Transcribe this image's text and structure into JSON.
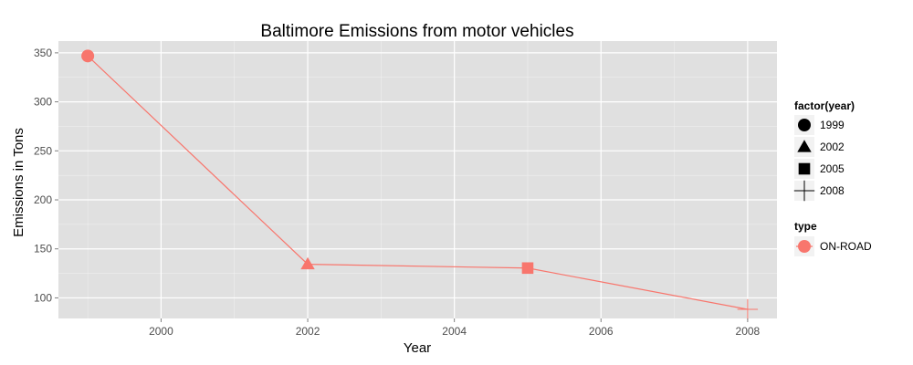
{
  "chart_data": {
    "type": "line",
    "title": "Baltimore Emissions from motor vehicles",
    "xlabel": "Year",
    "ylabel": "Emissions in Tons",
    "x": [
      1999,
      2002,
      2005,
      2008
    ],
    "series": [
      {
        "name": "ON-ROAD",
        "values": [
          346.8,
          134.3,
          130.4,
          88.3
        ]
      }
    ],
    "xlim": [
      1998.6,
      2008.4
    ],
    "ylim": [
      79,
      362
    ],
    "x_ticks": [
      2000,
      2002,
      2004,
      2006,
      2008
    ],
    "y_ticks": [
      100,
      150,
      200,
      250,
      300,
      350
    ],
    "x_tick_labels": [
      "2000",
      "2002",
      "2004",
      "2006",
      "2008"
    ],
    "y_tick_labels": [
      "100",
      "150",
      "200",
      "250",
      "300",
      "350"
    ],
    "grid": true,
    "legend_position": "right",
    "colors": {
      "series": "#F8766D",
      "panel": "#E0E0E0",
      "grid": "#FFFFFF"
    },
    "legends": [
      {
        "title": "factor(year)",
        "entries": [
          {
            "label": "1999",
            "shape": "circle"
          },
          {
            "label": "2002",
            "shape": "triangle"
          },
          {
            "label": "2005",
            "shape": "square"
          },
          {
            "label": "2008",
            "shape": "plus"
          }
        ]
      },
      {
        "title": "type",
        "entries": [
          {
            "label": "ON-ROAD",
            "shape": "circle-line"
          }
        ]
      }
    ]
  }
}
